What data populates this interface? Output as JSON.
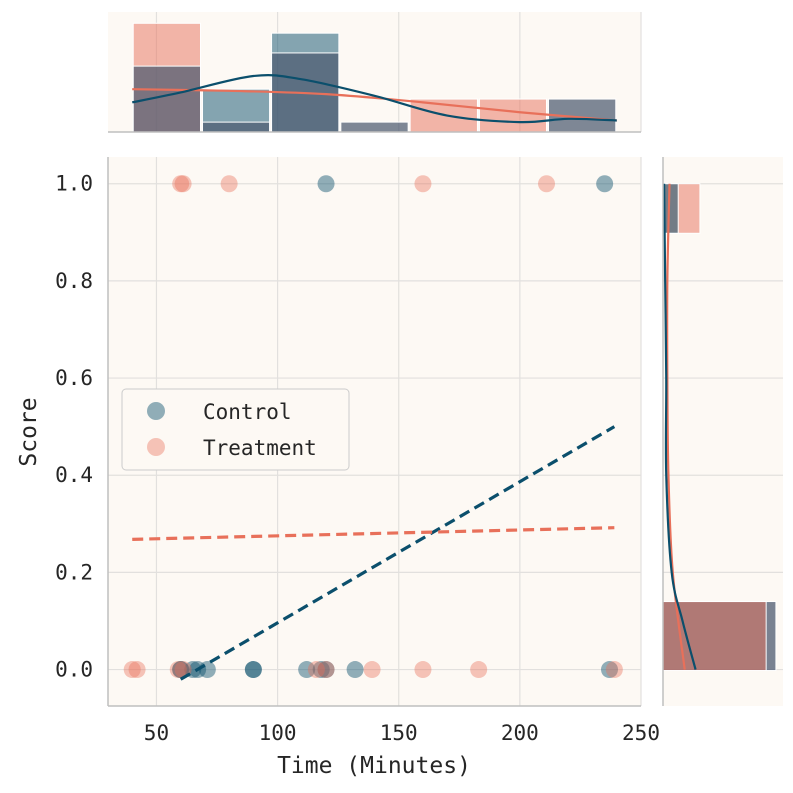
{
  "chart_data": {
    "type": "scatter",
    "xlabel": "Time (Minutes)",
    "ylabel": "Score",
    "xlim": [
      30,
      250
    ],
    "ylim": [
      -0.075,
      1.055
    ],
    "xticks": [
      "50",
      "100",
      "150",
      "200",
      "250"
    ],
    "yticks": [
      "0.0",
      "0.2",
      "0.4",
      "0.6",
      "0.8",
      "1.0"
    ],
    "xtick_values": [
      50,
      100,
      150,
      200,
      250
    ],
    "ytick_values": [
      0.0,
      0.2,
      0.4,
      0.6,
      0.8,
      1.0
    ],
    "grid": true,
    "legend_position": "center-left",
    "series": [
      {
        "name": "Control",
        "color": "#0b4f6c",
        "alpha": 0.45,
        "points": [
          {
            "x": 60,
            "y": 0
          },
          {
            "x": 60,
            "y": 0
          },
          {
            "x": 65,
            "y": 0
          },
          {
            "x": 67,
            "y": 0
          },
          {
            "x": 71,
            "y": 0
          },
          {
            "x": 90,
            "y": 0
          },
          {
            "x": 90,
            "y": 0
          },
          {
            "x": 112,
            "y": 0
          },
          {
            "x": 118,
            "y": 0
          },
          {
            "x": 120,
            "y": 0
          },
          {
            "x": 132,
            "y": 0
          },
          {
            "x": 237,
            "y": 0
          },
          {
            "x": 120,
            "y": 1
          },
          {
            "x": 235,
            "y": 1
          }
        ],
        "regression": {
          "x0": 60,
          "y0": -0.02,
          "x1": 239,
          "y1": 0.5
        }
      },
      {
        "name": "Treatment",
        "color": "#e8705a",
        "alpha": 0.4,
        "points": [
          {
            "x": 40,
            "y": 0
          },
          {
            "x": 42,
            "y": 0
          },
          {
            "x": 59,
            "y": 0
          },
          {
            "x": 61,
            "y": 0
          },
          {
            "x": 116,
            "y": 0
          },
          {
            "x": 120,
            "y": 0
          },
          {
            "x": 139,
            "y": 0
          },
          {
            "x": 160,
            "y": 0
          },
          {
            "x": 183,
            "y": 0
          },
          {
            "x": 239,
            "y": 0
          },
          {
            "x": 60,
            "y": 1
          },
          {
            "x": 61,
            "y": 1
          },
          {
            "x": 80,
            "y": 1
          },
          {
            "x": 160,
            "y": 1
          },
          {
            "x": 211,
            "y": 1
          }
        ],
        "regression": {
          "x0": 40,
          "y0": 0.268,
          "x1": 239,
          "y1": 0.292
        }
      }
    ],
    "marginal_x": {
      "bin_edges": [
        40,
        68.6,
        97.1,
        125.7,
        154.3,
        182.9,
        211.4,
        240
      ],
      "max_count": 3.4,
      "control_counts": [
        2,
        0.3,
        2.4,
        0.3,
        0,
        0,
        1
      ],
      "treatment_counts": [
        3.3,
        0,
        0,
        0,
        1,
        1,
        0
      ],
      "control_overlay_tops": [
        0,
        1.3,
        3.0,
        0,
        0,
        0,
        0
      ],
      "control_kde": [
        [
          40,
          0.9
        ],
        [
          60,
          1.2
        ],
        [
          90,
          1.7
        ],
        [
          110,
          1.6
        ],
        [
          140,
          1.1
        ],
        [
          170,
          0.5
        ],
        [
          200,
          0.3
        ],
        [
          220,
          0.4
        ],
        [
          240,
          0.35
        ]
      ],
      "treatment_kde": [
        [
          40,
          1.3
        ],
        [
          80,
          1.25
        ],
        [
          120,
          1.15
        ],
        [
          160,
          0.9
        ],
        [
          200,
          0.6
        ],
        [
          240,
          0.35
        ]
      ]
    },
    "marginal_y": {
      "max_count": 10.5,
      "bars": [
        {
          "series": "Control",
          "y0": 0.0,
          "y1": 0.14,
          "count": 10.4
        },
        {
          "series": "Treatment",
          "y0": 0.0,
          "y1": 0.14,
          "count": 9.5
        },
        {
          "series": "Treatment",
          "y0": 0.9,
          "y1": 1.0,
          "count": 3.4
        },
        {
          "series": "Control",
          "y0": 0.9,
          "y1": 1.0,
          "count": 1.4
        }
      ],
      "control_kde": [
        [
          1.0,
          0.1
        ],
        [
          0.8,
          0.2
        ],
        [
          0.6,
          0.3
        ],
        [
          0.4,
          0.3
        ],
        [
          0.2,
          0.8
        ],
        [
          0.1,
          1.8
        ],
        [
          0.0,
          3.0
        ]
      ],
      "treatment_kde": [
        [
          1.0,
          0.6
        ],
        [
          0.8,
          0.4
        ],
        [
          0.6,
          0.4
        ],
        [
          0.4,
          0.5
        ],
        [
          0.2,
          0.9
        ],
        [
          0.0,
          2.0
        ]
      ]
    }
  }
}
